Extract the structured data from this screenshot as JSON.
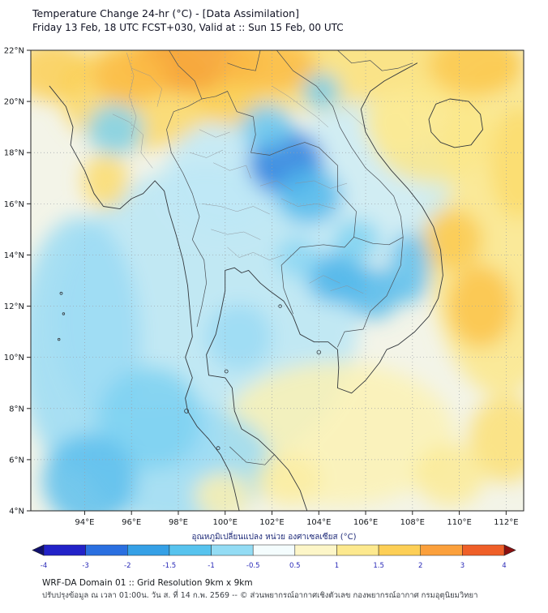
{
  "header": {
    "title": "Temperature Change 24-hr (°C) - [Data Assimilation]",
    "subtitle": "Friday 13 Feb, 18 UTC FCST+030, Valid at :: Sun 15 Feb, 00 UTC"
  },
  "axes": {
    "x_ticks": [
      "94°E",
      "96°E",
      "98°E",
      "100°E",
      "102°E",
      "104°E",
      "106°E",
      "108°E",
      "110°E",
      "112°E"
    ],
    "y_ticks": [
      "4°N",
      "6°N",
      "8°N",
      "10°N",
      "12°N",
      "14°N",
      "16°N",
      "18°N",
      "20°N",
      "22°N"
    ]
  },
  "footer": {
    "line1": "WRF-DA Domain 01 :: Grid Resolution 9km x 9km",
    "line2": "ปรับปรุงข้อมูล ณ เวลา 01:00น. วัน ส. ที่ 14 ก.พ. 2569 -- © ส่วนพยากรณ์อากาศเชิงตัวเลข กองพยากรณ์อากาศ กรมอุตุนิยมวิทยา"
  },
  "chart_data": {
    "type": "heatmap",
    "title": "Temperature Change 24-hr (°C) - [Data Assimilation]",
    "model_run": "Friday 13 Feb, 18 UTC FCST+030",
    "valid_time": "Sun 15 Feb, 00 UTC",
    "units": "°C",
    "projection": "lat-lon",
    "x_range": [
      91.7,
      112.75
    ],
    "y_range": [
      4,
      22
    ],
    "x_tick_values": [
      94,
      96,
      98,
      100,
      102,
      104,
      106,
      108,
      110,
      112
    ],
    "y_tick_values": [
      4,
      6,
      8,
      10,
      12,
      14,
      16,
      18,
      20,
      22
    ],
    "grid": "dotted",
    "base_value_color": "#f3f4e8",
    "colorbar": {
      "label": "อุณหภูมิเปลี่ยนแปลง หน่วย องศาเซลเซียส (°C)",
      "min": -4,
      "max": 4,
      "ticks": [
        -4,
        -3,
        -2,
        -1.5,
        -1,
        -0.5,
        0.5,
        1,
        1.5,
        2,
        3,
        4
      ],
      "arrow_ends": true,
      "segment_colors": [
        "#10106e",
        "#2222c8",
        "#2a6fe0",
        "#35a0e6",
        "#57c3ee",
        "#93dcf4",
        "#f4fdfe",
        "#fdf6c8",
        "#fde98e",
        "#fdcf56",
        "#fba03c",
        "#ef5f28",
        "#8c1010"
      ],
      "tick_text_color": "#2929b8"
    },
    "colorscale_stops": [
      [
        -4,
        "#1616b4"
      ],
      [
        -3,
        "#2050d2"
      ],
      [
        -2,
        "#2f8ce2"
      ],
      [
        -1.5,
        "#49b4ea"
      ],
      [
        -1,
        "#7ed2f2"
      ],
      [
        -0.5,
        "#c6ebf7"
      ],
      [
        0,
        "#f3f4e8"
      ],
      [
        0.5,
        "#fcf3bb"
      ],
      [
        1,
        "#fce57f"
      ],
      [
        1.5,
        "#fccf55"
      ],
      [
        2,
        "#fab03c"
      ],
      [
        3,
        "#ef7f2c"
      ],
      [
        4,
        "#d63a22"
      ]
    ],
    "anomalies": [
      {
        "lon": 99.2,
        "lat": 11.5,
        "rx": 6.5,
        "ry": 6.0,
        "dT": -0.6
      },
      {
        "lon": 104.0,
        "lat": 21.6,
        "rx": 9.0,
        "ry": 2.0,
        "dT": 1.1
      },
      {
        "lon": 111.8,
        "lat": 15.0,
        "rx": 3.2,
        "ry": 6.5,
        "dT": 0.9
      },
      {
        "lon": 104.8,
        "lat": 7.0,
        "rx": 5.0,
        "ry": 2.8,
        "dT": 0.55
      },
      {
        "lon": 96.3,
        "lat": 20.3,
        "rx": 3.4,
        "ry": 2.2,
        "dT": 1.3
      },
      {
        "lon": 106.0,
        "lat": 16.8,
        "rx": 3.6,
        "ry": 3.2,
        "dT": -0.45
      },
      {
        "lon": 93.8,
        "lat": 10.5,
        "rx": 2.6,
        "ry": 5.0,
        "dT": -0.8
      },
      {
        "lon": 98.0,
        "lat": 5.8,
        "rx": 4.0,
        "ry": 2.4,
        "dT": -0.8
      },
      {
        "lon": 108.8,
        "lat": 18.8,
        "rx": 2.6,
        "ry": 2.0,
        "dT": 0.9
      },
      {
        "lon": 100.0,
        "lat": 17.0,
        "rx": 2.6,
        "ry": 2.2,
        "dT": -0.55
      },
      {
        "lon": 102.6,
        "lat": 17.6,
        "rx": 1.6,
        "ry": 1.3,
        "dT": -2.2
      },
      {
        "lon": 103.6,
        "lat": 16.3,
        "rx": 1.4,
        "ry": 1.1,
        "dT": -1.4
      },
      {
        "lon": 101.8,
        "lat": 19.0,
        "rx": 1.1,
        "ry": 0.9,
        "dT": -1.2
      },
      {
        "lon": 104.8,
        "lat": 13.1,
        "rx": 1.3,
        "ry": 1.0,
        "dT": -1.5
      },
      {
        "lon": 106.3,
        "lat": 12.5,
        "rx": 1.2,
        "ry": 1.0,
        "dT": -1.4
      },
      {
        "lon": 105.6,
        "lat": 14.6,
        "rx": 1.0,
        "ry": 0.8,
        "dT": -1.0
      },
      {
        "lon": 107.9,
        "lat": 13.5,
        "rx": 0.9,
        "ry": 1.4,
        "dT": -1.3
      },
      {
        "lon": 95.3,
        "lat": 18.9,
        "rx": 1.2,
        "ry": 1.0,
        "dT": -1.0
      },
      {
        "lon": 94.2,
        "lat": 5.2,
        "rx": 2.0,
        "ry": 1.8,
        "dT": -1.3
      },
      {
        "lon": 96.8,
        "lat": 7.6,
        "rx": 2.2,
        "ry": 2.0,
        "dT": -1.0
      },
      {
        "lon": 100.6,
        "lat": 10.8,
        "rx": 1.4,
        "ry": 1.3,
        "dT": -0.8
      },
      {
        "lon": 104.1,
        "lat": 20.4,
        "rx": 0.8,
        "ry": 0.7,
        "dT": -1.1
      },
      {
        "lon": 98.7,
        "lat": 21.6,
        "rx": 2.8,
        "ry": 1.3,
        "dT": 2.3
      },
      {
        "lon": 101.9,
        "lat": 21.4,
        "rx": 2.0,
        "ry": 1.1,
        "dT": 1.8
      },
      {
        "lon": 95.9,
        "lat": 21.0,
        "rx": 1.6,
        "ry": 1.1,
        "dT": 1.8
      },
      {
        "lon": 110.7,
        "lat": 21.4,
        "rx": 2.0,
        "ry": 1.2,
        "dT": 1.6
      },
      {
        "lon": 109.7,
        "lat": 14.6,
        "rx": 1.3,
        "ry": 1.2,
        "dT": 1.6
      },
      {
        "lon": 110.9,
        "lat": 12.0,
        "rx": 1.4,
        "ry": 1.6,
        "dT": 1.7
      },
      {
        "lon": 112.5,
        "lat": 17.6,
        "rx": 1.2,
        "ry": 2.2,
        "dT": 1.2
      },
      {
        "lon": 94.9,
        "lat": 16.9,
        "rx": 1.0,
        "ry": 1.1,
        "dT": 1.2
      },
      {
        "lon": 92.6,
        "lat": 21.2,
        "rx": 1.6,
        "ry": 1.2,
        "dT": 1.5
      },
      {
        "lon": 100.2,
        "lat": 19.9,
        "rx": 1.2,
        "ry": 0.9,
        "dT": 1.5
      },
      {
        "lon": 107.4,
        "lat": 19.2,
        "rx": 1.5,
        "ry": 1.2,
        "dT": 0.8
      },
      {
        "lon": 103.1,
        "lat": 13.9,
        "rx": 0.9,
        "ry": 0.8,
        "dT": -0.9
      },
      {
        "lon": 112.0,
        "lat": 6.8,
        "rx": 1.6,
        "ry": 1.7,
        "dT": 1.1
      },
      {
        "lon": 109.6,
        "lat": 5.4,
        "rx": 1.5,
        "ry": 1.2,
        "dT": 0.8
      },
      {
        "lon": 102.7,
        "lat": 5.2,
        "rx": 1.4,
        "ry": 1.0,
        "dT": 0.7
      },
      {
        "lon": 99.9,
        "lat": 4.6,
        "rx": 1.2,
        "ry": 0.9,
        "dT": 0.6
      }
    ]
  }
}
